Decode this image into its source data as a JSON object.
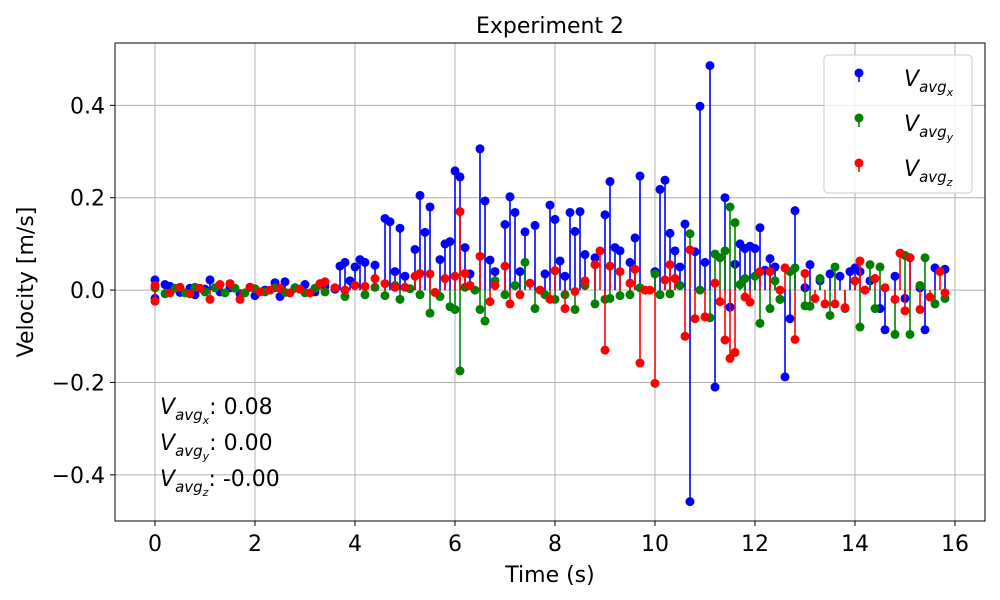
{
  "chart_data": {
    "type": "stem",
    "title": "Experiment 2",
    "xlabel": "Time (s)",
    "ylabel": "Velocity [m/s]",
    "xlim": [
      -0.8,
      16.6
    ],
    "ylim": [
      -0.5,
      0.535
    ],
    "x_ticks": [
      0,
      2,
      4,
      6,
      8,
      10,
      12,
      14,
      16
    ],
    "x_tick_labels": [
      "0",
      "2",
      "4",
      "6",
      "8",
      "10",
      "12",
      "14",
      "16"
    ],
    "y_ticks": [
      -0.4,
      -0.2,
      0.0,
      0.2,
      0.4
    ],
    "y_tick_labels": [
      "−0.4",
      "−0.2",
      "0.0",
      "0.2",
      "0.4"
    ],
    "grid": true,
    "legend_position": "top-right",
    "series": [
      {
        "name": "Vavgx",
        "subscript": "x",
        "color": "#0000ff",
        "mean_label": ": 0.08",
        "points": [
          [
            0,
            0.022
          ],
          [
            0,
            -0.018
          ],
          [
            0.2,
            0.012
          ],
          [
            0.3,
            0.008
          ],
          [
            0.5,
            -0.005
          ],
          [
            0.7,
            0.004
          ],
          [
            0.8,
            -0.01
          ],
          [
            1.0,
            0.002
          ],
          [
            1.1,
            0.022
          ],
          [
            1.3,
            -0.004
          ],
          [
            1.5,
            0.005
          ],
          [
            1.7,
            -0.008
          ],
          [
            1.9,
            0.006
          ],
          [
            2.0,
            -0.012
          ],
          [
            2.2,
            0.0
          ],
          [
            2.4,
            0.016
          ],
          [
            2.5,
            -0.014
          ],
          [
            2.6,
            0.018
          ],
          [
            2.8,
            0.005
          ],
          [
            3.0,
            0.012
          ],
          [
            3.2,
            -0.004
          ],
          [
            3.4,
            0.008
          ],
          [
            3.6,
            0.002
          ],
          [
            3.7,
            0.052
          ],
          [
            3.8,
            0.06
          ],
          [
            3.9,
            0.02
          ],
          [
            4.0,
            0.05
          ],
          [
            4.1,
            0.066
          ],
          [
            4.2,
            0.06
          ],
          [
            4.4,
            0.054
          ],
          [
            4.6,
            0.155
          ],
          [
            4.7,
            0.148
          ],
          [
            4.8,
            0.04
          ],
          [
            4.9,
            0.134
          ],
          [
            5.0,
            0.03
          ],
          [
            5.2,
            0.088
          ],
          [
            5.3,
            0.205
          ],
          [
            5.4,
            0.125
          ],
          [
            5.5,
            0.18
          ],
          [
            5.7,
            0.066
          ],
          [
            5.8,
            0.1
          ],
          [
            5.9,
            0.105
          ],
          [
            6.0,
            0.258
          ],
          [
            6.1,
            0.245
          ],
          [
            6.2,
            0.092
          ],
          [
            6.3,
            0.035
          ],
          [
            6.5,
            0.306
          ],
          [
            6.6,
            0.193
          ],
          [
            6.7,
            0.065
          ],
          [
            6.8,
            0.04
          ],
          [
            7.0,
            0.142
          ],
          [
            7.1,
            0.202
          ],
          [
            7.2,
            0.168
          ],
          [
            7.3,
            0.04
          ],
          [
            7.4,
            0.126
          ],
          [
            7.6,
            0.14
          ],
          [
            7.8,
            0.035
          ],
          [
            7.9,
            0.184
          ],
          [
            8.0,
            0.153
          ],
          [
            8.1,
            0.063
          ],
          [
            8.2,
            0.03
          ],
          [
            8.3,
            0.168
          ],
          [
            8.4,
            0.127
          ],
          [
            8.5,
            0.17
          ],
          [
            8.6,
            0.077
          ],
          [
            8.8,
            0.07
          ],
          [
            9.0,
            0.163
          ],
          [
            9.1,
            0.235
          ],
          [
            9.2,
            0.092
          ],
          [
            9.3,
            0.085
          ],
          [
            9.5,
            0.06
          ],
          [
            9.6,
            0.113
          ],
          [
            9.7,
            0.247
          ],
          [
            10.0,
            0.04
          ],
          [
            10.1,
            0.218
          ],
          [
            10.2,
            0.238
          ],
          [
            10.3,
            0.123
          ],
          [
            10.4,
            0.085
          ],
          [
            10.5,
            0.05
          ],
          [
            10.6,
            0.143
          ],
          [
            10.7,
            -0.458
          ],
          [
            10.8,
            0.083
          ],
          [
            10.9,
            0.398
          ],
          [
            11.0,
            0.06
          ],
          [
            11.1,
            0.486
          ],
          [
            11.2,
            -0.21
          ],
          [
            11.4,
            0.2
          ],
          [
            11.5,
            -0.037
          ],
          [
            11.6,
            0.056
          ],
          [
            11.7,
            0.1
          ],
          [
            11.8,
            0.09
          ],
          [
            11.9,
            0.095
          ],
          [
            12.0,
            0.09
          ],
          [
            12.1,
            0.135
          ],
          [
            12.2,
            0.043
          ],
          [
            12.3,
            0.068
          ],
          [
            12.4,
            0.05
          ],
          [
            12.5,
            -0.02
          ],
          [
            12.6,
            -0.188
          ],
          [
            12.7,
            -0.062
          ],
          [
            12.8,
            0.172
          ],
          [
            13.0,
            0.005
          ],
          [
            13.1,
            0.055
          ],
          [
            13.3,
            0.02
          ],
          [
            13.5,
            0.035
          ],
          [
            13.7,
            0.03
          ],
          [
            13.9,
            0.04
          ],
          [
            14.0,
            0.048
          ],
          [
            14.1,
            0.04
          ],
          [
            14.3,
            0.02
          ],
          [
            14.5,
            -0.04
          ],
          [
            14.6,
            -0.086
          ],
          [
            14.8,
            0.03
          ],
          [
            15.0,
            -0.018
          ],
          [
            15.1,
            0.07
          ],
          [
            15.3,
            0.005
          ],
          [
            15.4,
            -0.086
          ],
          [
            15.6,
            0.048
          ],
          [
            15.8,
            0.045
          ]
        ]
      },
      {
        "name": "Vavgy",
        "subscript": "y",
        "color": "#008000",
        "mean_label": ": 0.00",
        "points": [
          [
            0,
            0.005
          ],
          [
            0.2,
            -0.008
          ],
          [
            0.4,
            0.004
          ],
          [
            0.6,
            -0.006
          ],
          [
            0.8,
            0.006
          ],
          [
            1.0,
            -0.004
          ],
          [
            1.2,
            0.005
          ],
          [
            1.4,
            -0.006
          ],
          [
            1.6,
            0.004
          ],
          [
            1.8,
            -0.006
          ],
          [
            2.0,
            0.003
          ],
          [
            2.2,
            -0.004
          ],
          [
            2.4,
            0.005
          ],
          [
            2.6,
            -0.005
          ],
          [
            2.8,
            0.004
          ],
          [
            3.0,
            -0.006
          ],
          [
            3.2,
            0.004
          ],
          [
            3.4,
            -0.004
          ],
          [
            3.6,
            0.005
          ],
          [
            3.8,
            -0.014
          ],
          [
            4.0,
            0.01
          ],
          [
            4.2,
            -0.01
          ],
          [
            4.4,
            0.006
          ],
          [
            4.6,
            -0.012
          ],
          [
            4.8,
            0.01
          ],
          [
            4.9,
            -0.02
          ],
          [
            5.1,
            0.003
          ],
          [
            5.3,
            -0.01
          ],
          [
            5.5,
            -0.05
          ],
          [
            5.7,
            -0.014
          ],
          [
            5.9,
            -0.036
          ],
          [
            6.0,
            -0.042
          ],
          [
            6.1,
            -0.175
          ],
          [
            6.2,
            0.006
          ],
          [
            6.4,
            0.0
          ],
          [
            6.5,
            -0.042
          ],
          [
            6.6,
            -0.067
          ],
          [
            6.8,
            0.02
          ],
          [
            7.0,
            -0.01
          ],
          [
            7.2,
            0.01
          ],
          [
            7.4,
            0.06
          ],
          [
            7.6,
            -0.04
          ],
          [
            7.8,
            -0.01
          ],
          [
            8.0,
            -0.02
          ],
          [
            8.2,
            -0.01
          ],
          [
            8.4,
            -0.042
          ],
          [
            8.6,
            0.01
          ],
          [
            8.8,
            -0.03
          ],
          [
            9.0,
            -0.02
          ],
          [
            9.1,
            -0.018
          ],
          [
            9.3,
            -0.012
          ],
          [
            9.5,
            -0.01
          ],
          [
            9.7,
            0.005
          ],
          [
            10.0,
            0.035
          ],
          [
            10.1,
            -0.01
          ],
          [
            10.3,
            -0.008
          ],
          [
            10.5,
            0.01
          ],
          [
            10.7,
            0.122
          ],
          [
            10.9,
            0.0
          ],
          [
            11.1,
            -0.06
          ],
          [
            11.2,
            0.078
          ],
          [
            11.3,
            0.07
          ],
          [
            11.4,
            0.085
          ],
          [
            11.5,
            0.18
          ],
          [
            11.6,
            0.146
          ],
          [
            11.7,
            0.012
          ],
          [
            11.8,
            0.025
          ],
          [
            12.0,
            0.03
          ],
          [
            12.1,
            -0.072
          ],
          [
            12.3,
            -0.04
          ],
          [
            12.4,
            0.02
          ],
          [
            12.5,
            -0.02
          ],
          [
            12.7,
            0.04
          ],
          [
            12.8,
            0.048
          ],
          [
            13.0,
            -0.034
          ],
          [
            13.1,
            -0.035
          ],
          [
            13.3,
            0.025
          ],
          [
            13.5,
            -0.055
          ],
          [
            13.6,
            0.05
          ],
          [
            13.8,
            -0.04
          ],
          [
            14.0,
            0.02
          ],
          [
            14.1,
            -0.08
          ],
          [
            14.3,
            0.055
          ],
          [
            14.4,
            -0.04
          ],
          [
            14.5,
            0.05
          ],
          [
            14.8,
            -0.096
          ],
          [
            15.0,
            0.075
          ],
          [
            15.1,
            -0.096
          ],
          [
            15.3,
            0.01
          ],
          [
            15.4,
            0.07
          ],
          [
            15.6,
            -0.03
          ],
          [
            15.8,
            -0.018
          ]
        ]
      },
      {
        "name": "Vavgz",
        "subscript": "z",
        "color": "#ff0000",
        "mean_label": ": -0.00",
        "points": [
          [
            0,
            -0.024
          ],
          [
            0,
            0.01
          ],
          [
            0.3,
            -0.006
          ],
          [
            0.5,
            0.006
          ],
          [
            0.7,
            -0.008
          ],
          [
            0.9,
            0.004
          ],
          [
            1.1,
            -0.02
          ],
          [
            1.3,
            0.012
          ],
          [
            1.5,
            0.014
          ],
          [
            1.7,
            -0.02
          ],
          [
            1.9,
            0.006
          ],
          [
            2.1,
            -0.004
          ],
          [
            2.3,
            0.0
          ],
          [
            2.5,
            0.004
          ],
          [
            2.7,
            -0.006
          ],
          [
            2.9,
            0.002
          ],
          [
            3.1,
            -0.006
          ],
          [
            3.3,
            0.014
          ],
          [
            3.4,
            0.018
          ],
          [
            3.6,
            0.005
          ],
          [
            3.8,
            0.0
          ],
          [
            4.0,
            0.01
          ],
          [
            4.2,
            0.008
          ],
          [
            4.4,
            0.025
          ],
          [
            4.6,
            0.014
          ],
          [
            4.8,
            0.006
          ],
          [
            5.0,
            0.006
          ],
          [
            5.2,
            0.03
          ],
          [
            5.3,
            0.036
          ],
          [
            5.5,
            0.035
          ],
          [
            5.6,
            -0.005
          ],
          [
            5.8,
            0.025
          ],
          [
            6.0,
            0.03
          ],
          [
            6.1,
            0.17
          ],
          [
            6.2,
            0.036
          ],
          [
            6.3,
            0.01
          ],
          [
            6.5,
            0.073
          ],
          [
            6.7,
            -0.025
          ],
          [
            6.8,
            0.01
          ],
          [
            7.0,
            0.052
          ],
          [
            7.1,
            -0.03
          ],
          [
            7.3,
            -0.01
          ],
          [
            7.5,
            0.015
          ],
          [
            7.7,
            0.0
          ],
          [
            7.9,
            -0.02
          ],
          [
            8.0,
            0.042
          ],
          [
            8.2,
            -0.04
          ],
          [
            8.4,
            -0.003
          ],
          [
            8.6,
            0.02
          ],
          [
            8.8,
            0.055
          ],
          [
            8.9,
            0.085
          ],
          [
            9.0,
            -0.13
          ],
          [
            9.1,
            0.052
          ],
          [
            9.3,
            0.04
          ],
          [
            9.5,
            0.015
          ],
          [
            9.6,
            0.045
          ],
          [
            9.7,
            -0.158
          ],
          [
            9.8,
            0.0
          ],
          [
            9.9,
            0.0
          ],
          [
            10.0,
            -0.202
          ],
          [
            10.2,
            0.022
          ],
          [
            10.3,
            0.055
          ],
          [
            10.4,
            0.025
          ],
          [
            10.6,
            -0.1
          ],
          [
            10.7,
            0.087
          ],
          [
            10.8,
            -0.062
          ],
          [
            11.0,
            -0.058
          ],
          [
            11.2,
            0.015
          ],
          [
            11.3,
            -0.025
          ],
          [
            11.4,
            -0.108
          ],
          [
            11.5,
            -0.148
          ],
          [
            11.6,
            -0.135
          ],
          [
            11.8,
            -0.015
          ],
          [
            11.9,
            -0.026
          ],
          [
            12.1,
            0.04
          ],
          [
            12.3,
            0.04
          ],
          [
            12.5,
            0.0
          ],
          [
            12.6,
            0.048
          ],
          [
            12.8,
            -0.107
          ],
          [
            13.0,
            0.036
          ],
          [
            13.2,
            -0.018
          ],
          [
            13.4,
            -0.03
          ],
          [
            13.6,
            -0.03
          ],
          [
            13.8,
            -0.038
          ],
          [
            14.0,
            0.02
          ],
          [
            14.1,
            0.063
          ],
          [
            14.2,
            0.0
          ],
          [
            14.4,
            0.025
          ],
          [
            14.6,
            0.005
          ],
          [
            14.8,
            -0.02
          ],
          [
            14.9,
            0.08
          ],
          [
            15.0,
            -0.045
          ],
          [
            15.1,
            0.07
          ],
          [
            15.3,
            -0.042
          ],
          [
            15.5,
            -0.015
          ],
          [
            15.7,
            0.04
          ],
          [
            15.8,
            -0.006
          ]
        ]
      }
    ]
  }
}
